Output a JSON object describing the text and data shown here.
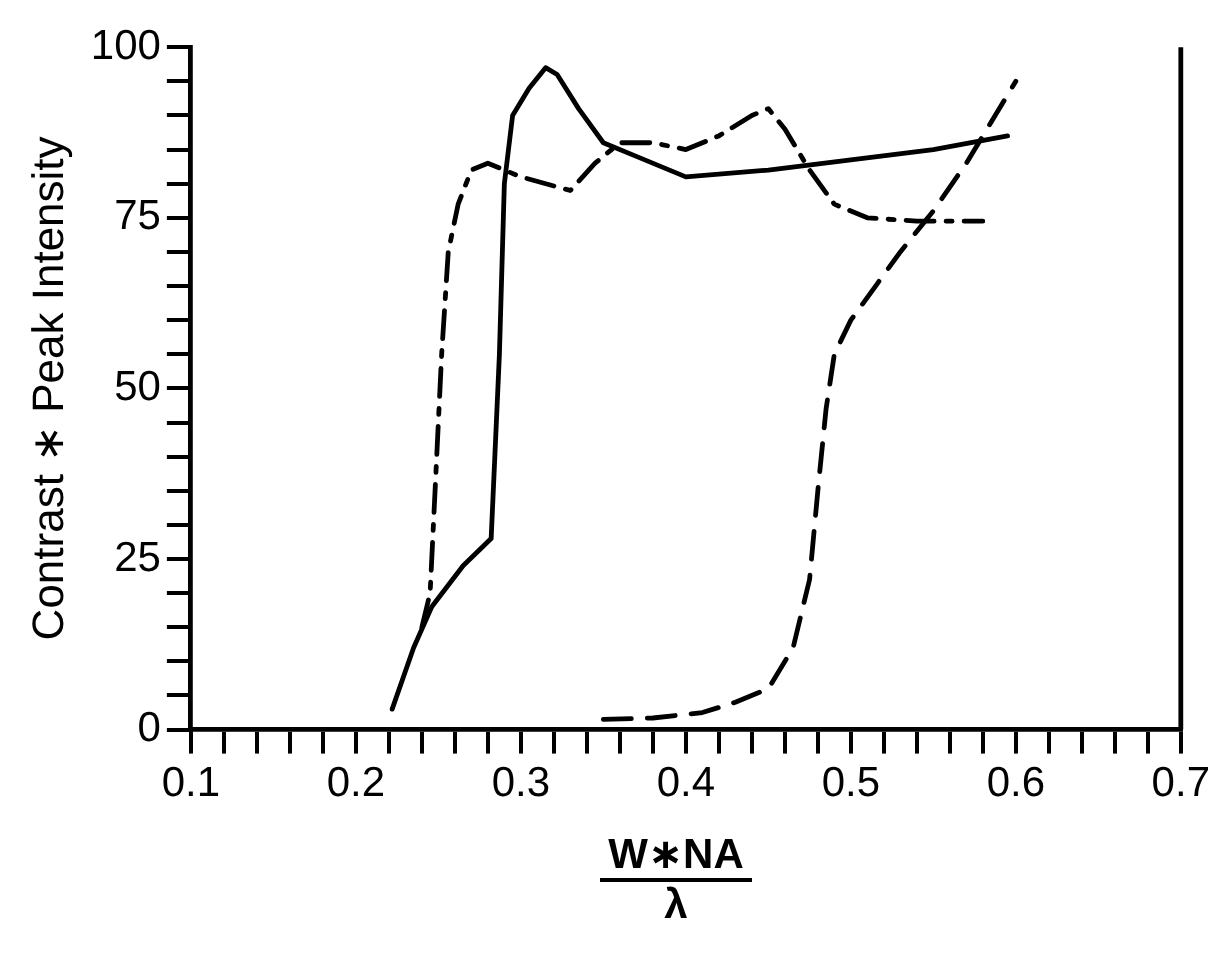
{
  "chart_data": {
    "type": "line",
    "xlabel": "W∗NA\nλ",
    "ylabel": "Contrast ∗ Peak Intensity",
    "xlim": [
      0.1,
      0.7
    ],
    "ylim": [
      0,
      100
    ],
    "xticks": [
      0.1,
      {
        "value": 0.12,
        "label": null
      },
      {
        "value": 0.14,
        "label": null
      },
      {
        "value": 0.16,
        "label": null
      },
      {
        "value": 0.18,
        "label": null
      },
      0.2,
      {
        "value": 0.22,
        "label": null
      },
      {
        "value": 0.24,
        "label": null
      },
      {
        "value": 0.26,
        "label": null
      },
      {
        "value": 0.28,
        "label": null
      },
      0.3,
      {
        "value": 0.32,
        "label": null
      },
      {
        "value": 0.34,
        "label": null
      },
      {
        "value": 0.36,
        "label": null
      },
      {
        "value": 0.38,
        "label": null
      },
      0.4,
      {
        "value": 0.42,
        "label": null
      },
      {
        "value": 0.44,
        "label": null
      },
      {
        "value": 0.46,
        "label": null
      },
      {
        "value": 0.48,
        "label": null
      },
      0.5,
      {
        "value": 0.52,
        "label": null
      },
      {
        "value": 0.54,
        "label": null
      },
      {
        "value": 0.56,
        "label": null
      },
      {
        "value": 0.58,
        "label": null
      },
      0.6,
      {
        "value": 0.62,
        "label": null
      },
      {
        "value": 0.64,
        "label": null
      },
      {
        "value": 0.66,
        "label": null
      },
      {
        "value": 0.68,
        "label": null
      },
      0.7
    ],
    "yticks": [
      0,
      {
        "value": 5,
        "label": null
      },
      {
        "value": 10,
        "label": null
      },
      {
        "value": 15,
        "label": null
      },
      {
        "value": 20,
        "label": null
      },
      25,
      {
        "value": 30,
        "label": null
      },
      {
        "value": 35,
        "label": null
      },
      {
        "value": 40,
        "label": null
      },
      {
        "value": 45,
        "label": null
      },
      50,
      {
        "value": 55,
        "label": null
      },
      {
        "value": 60,
        "label": null
      },
      {
        "value": 65,
        "label": null
      },
      {
        "value": 70,
        "label": null
      },
      75,
      {
        "value": 80,
        "label": null
      },
      {
        "value": 85,
        "label": null
      },
      {
        "value": 90,
        "label": null
      },
      {
        "value": 95,
        "label": null
      },
      100
    ],
    "marker": "none",
    "grid": false,
    "legend": false,
    "series": [
      {
        "color": "#000000",
        "line_style": "solid",
        "x": [
          0.222,
          0.235,
          0.246,
          0.265,
          0.282,
          0.287,
          0.29,
          0.295,
          0.305,
          0.315,
          0.322,
          0.335,
          0.35,
          0.37,
          0.4,
          0.45,
          0.5,
          0.55,
          0.595
        ],
        "values": [
          3,
          12,
          18,
          24,
          28,
          55,
          80,
          90,
          94,
          97,
          96,
          91,
          86,
          84,
          81,
          82,
          83.5,
          85,
          87
        ]
      },
      {
        "color": "#000000",
        "line_style": "dashdot",
        "x": [
          0.24,
          0.245,
          0.248,
          0.252,
          0.256,
          0.262,
          0.27,
          0.28,
          0.3,
          0.33,
          0.345,
          0.36,
          0.38,
          0.4,
          0.42,
          0.44,
          0.45,
          0.46,
          0.475,
          0.49,
          0.51,
          0.54,
          0.58
        ],
        "values": [
          15,
          20,
          35,
          55,
          70,
          77,
          82,
          83,
          81,
          79,
          83,
          86,
          86,
          85,
          87,
          90,
          91,
          88,
          82,
          77,
          75,
          74.5,
          74.5
        ]
      },
      {
        "color": "#000000",
        "line_style": "dashed",
        "x": [
          0.35,
          0.38,
          0.41,
          0.43,
          0.45,
          0.465,
          0.475,
          0.48,
          0.485,
          0.49,
          0.5,
          0.515,
          0.53,
          0.55,
          0.57,
          0.585,
          0.6
        ],
        "values": [
          1.5,
          1.7,
          2.5,
          4,
          6,
          12,
          22,
          35,
          47,
          55,
          60,
          65,
          70,
          76,
          83,
          89,
          95
        ]
      }
    ]
  }
}
